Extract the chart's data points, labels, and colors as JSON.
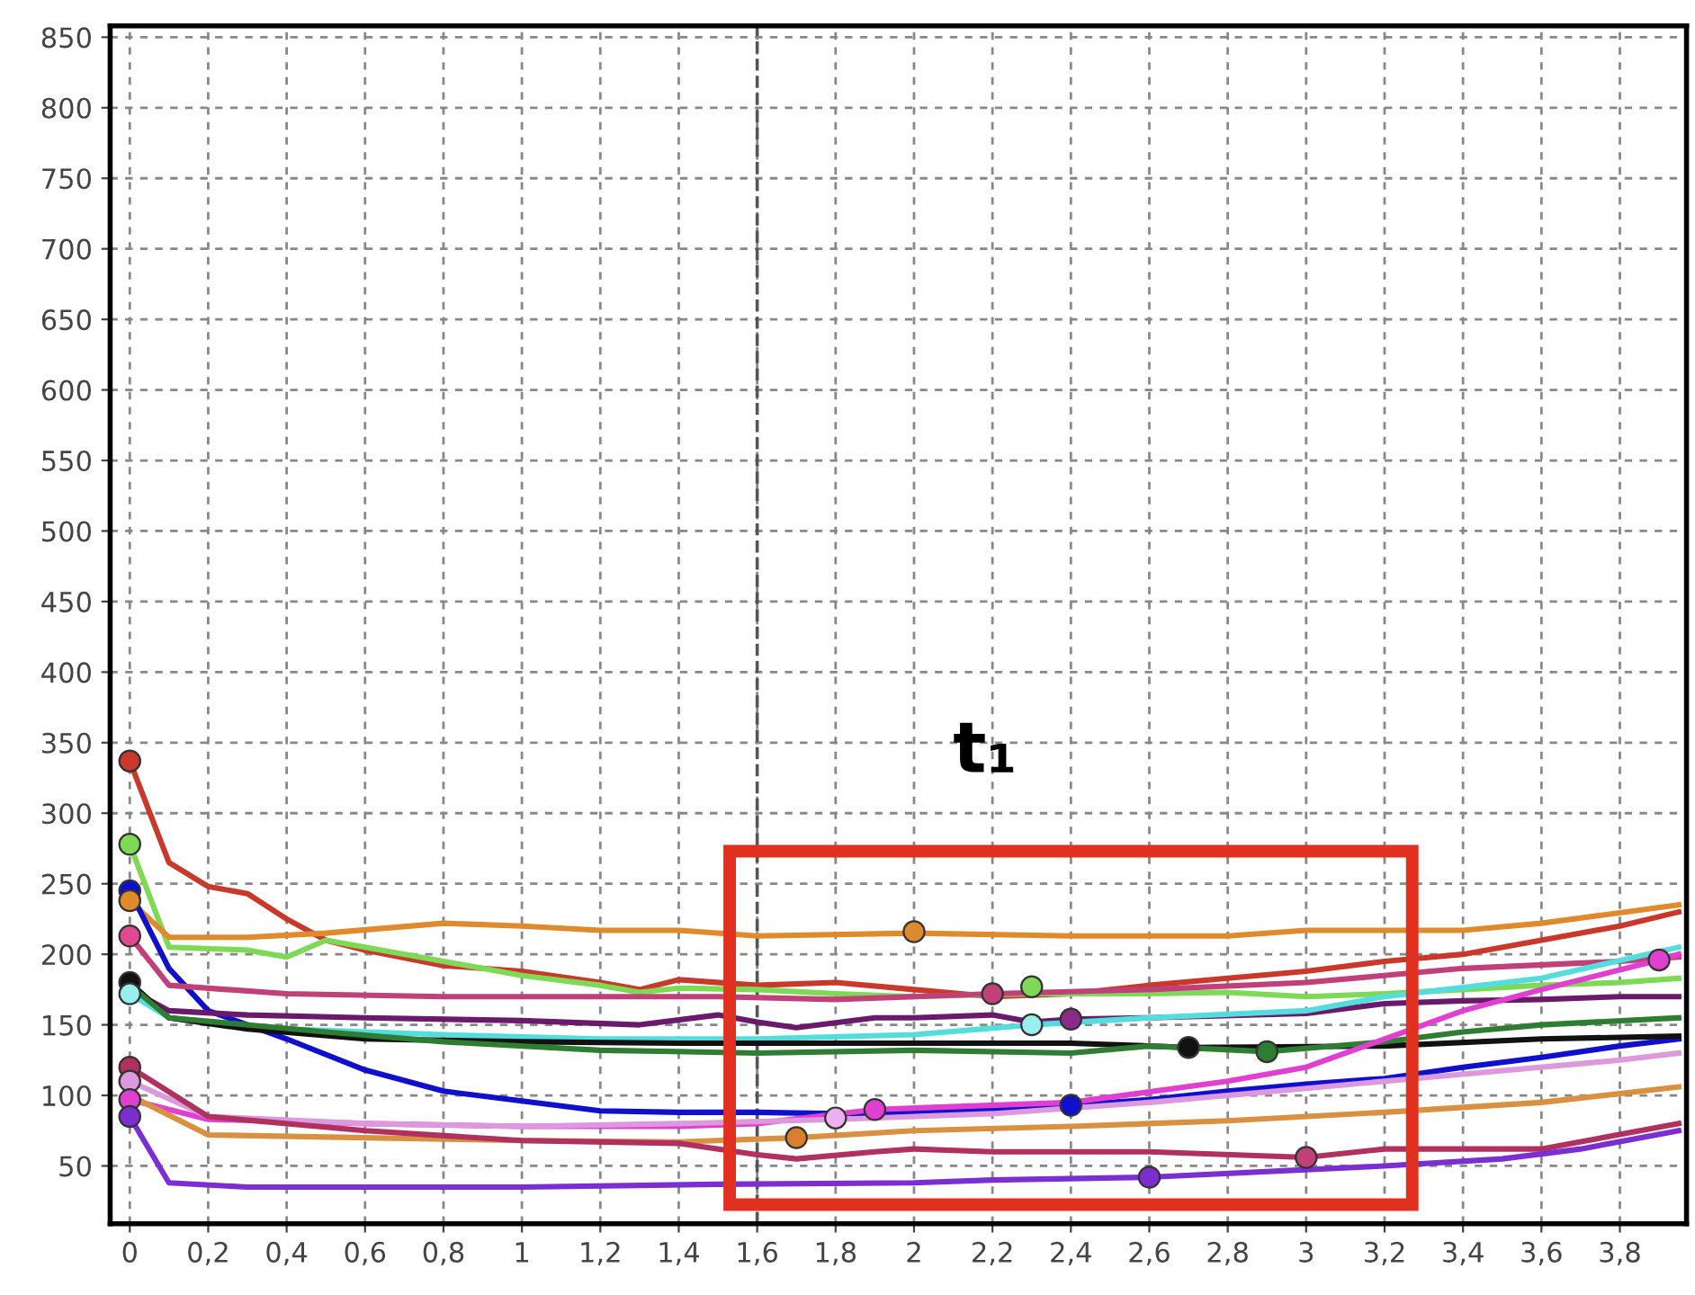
{
  "chart_data": {
    "type": "line",
    "xlim": [
      -0.05,
      3.97
    ],
    "ylim": [
      9,
      858
    ],
    "xticks": [
      0,
      {
        "value": 0.2,
        "label": "0,2"
      },
      {
        "value": 0.4,
        "label": "0,4"
      },
      {
        "value": 0.6,
        "label": "0,6"
      },
      {
        "value": 0.8,
        "label": "0,8"
      },
      1,
      {
        "value": 1.2,
        "label": "1,2"
      },
      {
        "value": 1.4,
        "label": "1,4"
      },
      {
        "value": 1.6,
        "label": "1,6"
      },
      {
        "value": 1.8,
        "label": "1,8"
      },
      2,
      {
        "value": 2.2,
        "label": "2,2"
      },
      {
        "value": 2.4,
        "label": "2,4"
      },
      {
        "value": 2.6,
        "label": "2,6"
      },
      {
        "value": 2.8,
        "label": "2,8"
      },
      3,
      {
        "value": 3.2,
        "label": "3,2"
      },
      {
        "value": 3.4,
        "label": "3,4"
      },
      {
        "value": 3.6,
        "label": "3,6"
      },
      {
        "value": 3.8,
        "label": "3,8"
      }
    ],
    "yticks": [
      50,
      100,
      150,
      200,
      250,
      300,
      350,
      400,
      450,
      500,
      550,
      600,
      650,
      700,
      750,
      800,
      850
    ],
    "grid": true,
    "line_style": "solid",
    "marker": "none",
    "ref_lines": [
      {
        "axis": "x",
        "value": 1.6,
        "line_style": "dashed",
        "color": "#555555"
      }
    ],
    "annotations": [
      "t₁"
    ],
    "series": [
      {
        "color": "#c8392b",
        "x": [
          0,
          0.1,
          0.2,
          0.3,
          0.4,
          0.5,
          0.6,
          0.8,
          1.0,
          1.2,
          1.3,
          1.4,
          1.6,
          1.8,
          2.0,
          2.2,
          2.4,
          2.6,
          2.8,
          3.0,
          3.2,
          3.4,
          3.6,
          3.8,
          3.95
        ],
        "values": [
          337,
          265,
          248,
          243,
          225,
          210,
          203,
          192,
          188,
          180,
          175,
          182,
          178,
          180,
          175,
          170,
          172,
          178,
          183,
          188,
          195,
          200,
          210,
          220,
          230
        ]
      },
      {
        "color": "#7ed957",
        "x": [
          0,
          0.1,
          0.3,
          0.4,
          0.5,
          0.6,
          0.8,
          1.0,
          1.2,
          1.3,
          1.4,
          1.6,
          1.8,
          2.0,
          2.3,
          2.6,
          2.8,
          3.0,
          3.2,
          3.4,
          3.6,
          3.8,
          3.95
        ],
        "values": [
          278,
          205,
          203,
          198,
          210,
          205,
          195,
          185,
          178,
          173,
          176,
          175,
          172,
          170,
          172,
          172,
          173,
          170,
          172,
          175,
          178,
          180,
          183
        ]
      },
      {
        "color": "#e08a2e",
        "x": [
          0,
          0.1,
          0.3,
          0.5,
          0.8,
          1.0,
          1.2,
          1.4,
          1.6,
          2.0,
          2.4,
          2.8,
          3.0,
          3.4,
          3.6,
          3.95
        ],
        "values": [
          238,
          212,
          212,
          215,
          222,
          220,
          217,
          217,
          213,
          215,
          213,
          213,
          217,
          217,
          222,
          235
        ]
      },
      {
        "color": "#1010cc",
        "x": [
          0,
          0.1,
          0.2,
          0.4,
          0.6,
          0.8,
          1.0,
          1.2,
          1.4,
          1.6,
          1.8,
          2.0,
          2.4,
          2.6,
          2.8,
          3.0,
          3.2,
          3.4,
          3.6,
          3.8,
          3.95
        ],
        "values": [
          245,
          190,
          160,
          140,
          118,
          103,
          96,
          89,
          88,
          88,
          87,
          88,
          93,
          97,
          103,
          108,
          112,
          120,
          127,
          135,
          140
        ]
      },
      {
        "color": "#c0407a",
        "x": [
          0,
          0.1,
          0.4,
          0.8,
          1.2,
          1.5,
          1.8,
          2.2,
          2.6,
          3.0,
          3.4,
          3.8,
          3.95
        ],
        "values": [
          213,
          178,
          172,
          170,
          170,
          170,
          168,
          172,
          175,
          180,
          190,
          195,
          198
        ]
      },
      {
        "color": "#6a1a6a",
        "x": [
          0,
          0.1,
          0.3,
          0.6,
          1.0,
          1.3,
          1.5,
          1.6,
          1.7,
          1.9,
          2.0,
          2.2,
          2.3,
          2.4,
          2.6,
          3.0,
          3.2,
          3.4,
          3.6,
          3.8,
          3.95
        ],
        "values": [
          175,
          160,
          157,
          155,
          153,
          150,
          157,
          152,
          148,
          155,
          155,
          157,
          152,
          154,
          155,
          158,
          165,
          167,
          168,
          170,
          170
        ]
      },
      {
        "color": "#55dddd",
        "x": [
          0,
          0.1,
          0.4,
          0.8,
          1.2,
          1.6,
          2.0,
          2.3,
          2.6,
          3.0,
          3.2,
          3.6,
          3.95
        ],
        "values": [
          172,
          155,
          147,
          143,
          140,
          140,
          143,
          150,
          155,
          160,
          170,
          183,
          205
        ]
      },
      {
        "color": "#111111",
        "x": [
          0,
          0.1,
          0.3,
          0.6,
          1.0,
          1.4,
          2.0,
          2.4,
          2.7,
          3.2,
          3.6,
          3.95
        ],
        "values": [
          180,
          155,
          147,
          140,
          138,
          137,
          137,
          137,
          134,
          135,
          140,
          142
        ]
      },
      {
        "color": "#2e7d32",
        "x": [
          0,
          0.1,
          0.5,
          0.8,
          1.2,
          1.6,
          2.0,
          2.4,
          2.6,
          2.9,
          3.2,
          3.4,
          3.6,
          3.95
        ],
        "values": [
          178,
          155,
          145,
          138,
          132,
          130,
          132,
          130,
          135,
          131,
          138,
          145,
          150,
          155
        ]
      },
      {
        "color": "#e040d0",
        "x": [
          0,
          0.2,
          0.6,
          1.0,
          1.4,
          1.6,
          1.9,
          2.4,
          2.8,
          3.0,
          3.2,
          3.4,
          3.6,
          3.9,
          3.95
        ],
        "values": [
          97,
          83,
          80,
          78,
          78,
          80,
          90,
          95,
          110,
          120,
          140,
          160,
          175,
          196,
          200
        ]
      },
      {
        "color": "#dd99dd",
        "x": [
          0,
          0.2,
          0.6,
          1.0,
          1.4,
          1.8,
          2.2,
          2.6,
          3.0,
          3.4,
          3.8,
          3.95
        ],
        "values": [
          110,
          85,
          80,
          78,
          80,
          83,
          87,
          95,
          105,
          115,
          125,
          130
        ]
      },
      {
        "color": "#d99040",
        "x": [
          0,
          0.2,
          0.6,
          1.0,
          1.4,
          1.7,
          2.0,
          2.4,
          2.8,
          3.2,
          3.6,
          3.95
        ],
        "values": [
          100,
          72,
          70,
          68,
          67,
          70,
          75,
          78,
          82,
          88,
          95,
          106
        ]
      },
      {
        "color": "#b03060",
        "x": [
          0,
          0.2,
          0.6,
          1.0,
          1.4,
          1.6,
          1.7,
          1.9,
          2.0,
          2.2,
          2.6,
          3.0,
          3.2,
          3.6,
          3.95
        ],
        "values": [
          120,
          85,
          75,
          68,
          66,
          58,
          55,
          60,
          62,
          60,
          60,
          56,
          62,
          62,
          80
        ]
      },
      {
        "color": "#7b2fd0",
        "x": [
          0,
          0.1,
          0.3,
          1.0,
          1.5,
          2.0,
          2.2,
          2.6,
          3.2,
          3.5,
          3.7,
          3.95
        ],
        "values": [
          85,
          38,
          35,
          35,
          37,
          38,
          40,
          42,
          50,
          55,
          62,
          75
        ]
      },
      {
        "type": "scatter",
        "marker": "circle",
        "x": [
          0,
          0,
          0,
          0,
          0,
          0,
          0,
          0,
          0,
          0,
          0,
          2.0,
          2.2,
          2.3,
          2.3,
          2.4,
          2.7,
          2.9,
          1.7,
          1.8,
          1.9,
          2.4,
          3.0,
          2.6,
          3.9
        ],
        "values": [
          337,
          278,
          245,
          238,
          213,
          180,
          172,
          120,
          110,
          97,
          85,
          216,
          172,
          177,
          150,
          154,
          134,
          131,
          70,
          84,
          90,
          93,
          56,
          42,
          196
        ],
        "colors": [
          "#c8392b",
          "#7ed957",
          "#1010cc",
          "#e08a2e",
          "#e04890",
          "#111111",
          "#99eeee",
          "#b03060",
          "#dd99dd",
          "#e040d0",
          "#7b2fd0",
          "#e08a2e",
          "#c0407a",
          "#7ed957",
          "#99eeee",
          "#8a2a8a",
          "#111111",
          "#2e7d32",
          "#d98030",
          "#eeb0ee",
          "#e040d0",
          "#1010cc",
          "#c0407a",
          "#7b2fd0",
          "#e040d0"
        ]
      }
    ]
  }
}
